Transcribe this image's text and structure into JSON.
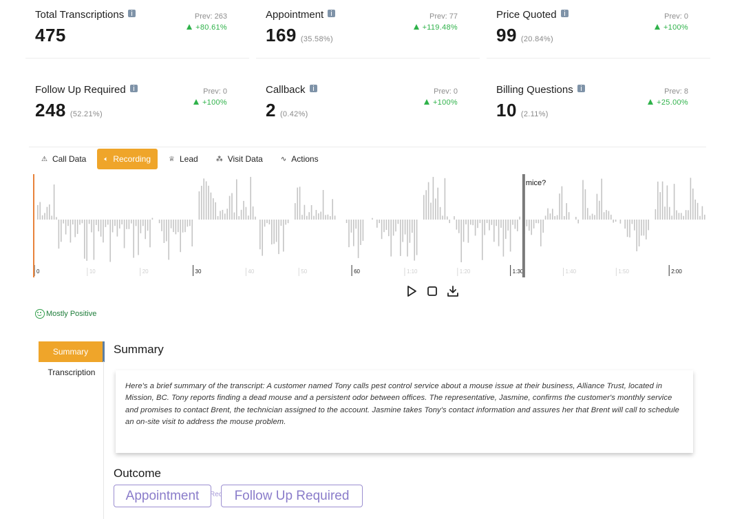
{
  "stats": [
    {
      "title": "Total Transcriptions",
      "value": "475",
      "percent": "",
      "prev": "Prev: 263",
      "change": "+80.61%"
    },
    {
      "title": "Appointment",
      "value": "169",
      "percent": "(35.58%)",
      "prev": "Prev: 77",
      "change": "+119.48%"
    },
    {
      "title": "Price Quoted",
      "value": "99",
      "percent": "(20.84%)",
      "prev": "Prev: 0",
      "change": "+100%"
    },
    {
      "title": "Follow Up Required",
      "value": "248",
      "percent": "(52.21%)",
      "prev": "Prev: 0",
      "change": "+100%"
    },
    {
      "title": "Callback",
      "value": "2",
      "percent": "(0.42%)",
      "prev": "Prev: 0",
      "change": "+100%"
    },
    {
      "title": "Billing Questions",
      "value": "10",
      "percent": "(2.11%)",
      "prev": "Prev: 8",
      "change": "+25.00%"
    }
  ],
  "tabs": [
    {
      "label": "Call Data",
      "icon": "warning-icon",
      "active": false
    },
    {
      "label": "Recording",
      "icon": "audio-icon",
      "active": true
    },
    {
      "label": "Lead",
      "icon": "trophy-icon",
      "active": false
    },
    {
      "label": "Visit Data",
      "icon": "network-icon",
      "active": false
    },
    {
      "label": "Actions",
      "icon": "activity-icon",
      "active": false
    }
  ],
  "recording": {
    "word_label": "mice?",
    "time_labels": [
      "0",
      "10",
      "20",
      "30",
      "40",
      "50",
      "60",
      "1:10",
      "1:20",
      "1:30",
      "1:40",
      "1:50",
      "2:00"
    ],
    "time_label_seconds": [
      0,
      10,
      20,
      30,
      40,
      50,
      60,
      70,
      80,
      90,
      100,
      110,
      120
    ],
    "total_seconds": 127,
    "playhead_seconds": 92.5,
    "colors": {
      "bar": "#c4c4c4",
      "playhead": "#7a7a7a",
      "start_marker": "#e8823a"
    }
  },
  "sentiment": {
    "label": "Mostly Positive",
    "color": "#1e7d3a"
  },
  "side_tabs": [
    {
      "label": "Summary",
      "active": true
    },
    {
      "label": "Transcription",
      "active": false
    }
  ],
  "summary": {
    "heading": "Summary",
    "text": "Here's a brief summary of the transcript: A customer named Tony calls pest control service about a mouse issue at their business, Alliance Trust, located in Mission, BC. Tony reports finding a dead mouse and a persistent odor between offices. The representative, Jasmine, confirms the customer's monthly service and promises to contact Brent, the technician assigned to the account. Jasmine takes Tony's contact information and assures her that Brent will call to schedule an on-site visit to address the mouse problem."
  },
  "outcome": {
    "heading": "Outcome",
    "chips": [
      "Appointment",
      "Follow Up Required"
    ],
    "hidden_chip_fragment": "Rec"
  }
}
